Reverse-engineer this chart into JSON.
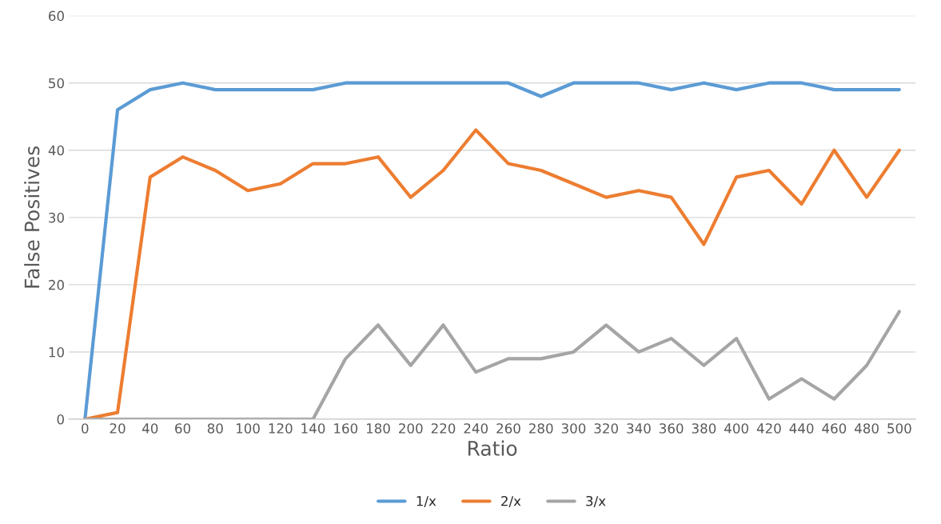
{
  "chart_data": {
    "type": "line",
    "xlabel": "Ratio",
    "ylabel": "False Positives",
    "categories": [
      "0",
      "20",
      "40",
      "60",
      "80",
      "100",
      "120",
      "140",
      "160",
      "180",
      "200",
      "220",
      "240",
      "260",
      "280",
      "300",
      "320",
      "340",
      "360",
      "380",
      "400",
      "420",
      "440",
      "460",
      "480",
      "500"
    ],
    "series": [
      {
        "name": "1/x",
        "color": "#5b9bd5",
        "values": [
          0,
          46,
          49,
          50,
          49,
          49,
          49,
          49,
          50,
          50,
          50,
          50,
          50,
          50,
          48,
          50,
          50,
          50,
          49,
          50,
          49,
          50,
          50,
          49,
          49,
          49
        ]
      },
      {
        "name": "2/x",
        "color": "#ed7d31",
        "values": [
          0,
          1,
          36,
          39,
          37,
          34,
          35,
          38,
          38,
          39,
          33,
          37,
          43,
          38,
          37,
          35,
          33,
          34,
          33,
          26,
          36,
          37,
          32,
          40,
          33,
          40
        ]
      },
      {
        "name": "3/x",
        "color": "#a5a5a5",
        "values": [
          0,
          0,
          0,
          0,
          0,
          0,
          0,
          0,
          9,
          14,
          8,
          14,
          7,
          9,
          9,
          10,
          14,
          10,
          12,
          8,
          12,
          3,
          6,
          3,
          8,
          16
        ]
      }
    ],
    "ylim": [
      0,
      60
    ],
    "yticks": [
      0,
      10,
      20,
      30,
      40,
      50,
      60
    ],
    "grid": "y",
    "legend": "bottom",
    "marker": "none",
    "line_style": "solid"
  }
}
